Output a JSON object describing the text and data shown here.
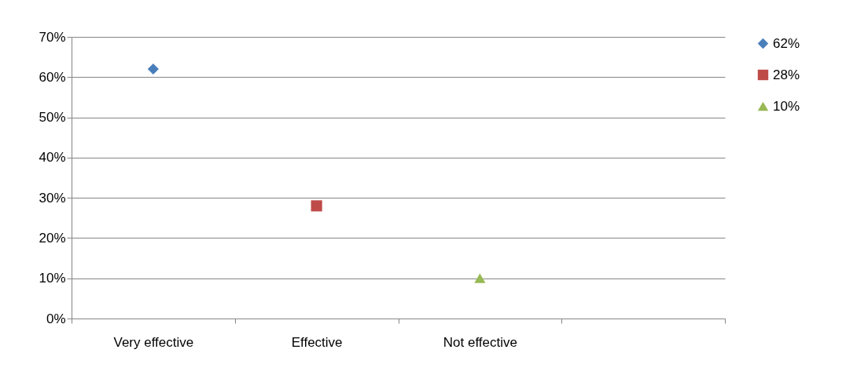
{
  "chart_data": {
    "type": "line",
    "categories": [
      "Very effective",
      "Effective",
      "Not effective",
      null
    ],
    "series": [
      {
        "name": "62%",
        "color": "#4a7ebb",
        "marker": "diamond",
        "values": [
          62,
          null,
          null,
          null
        ]
      },
      {
        "name": "28%",
        "color": "#be4b48",
        "marker": "square",
        "values": [
          null,
          28,
          null,
          null
        ]
      },
      {
        "name": "10%",
        "color": "#98b954",
        "marker": "triangle",
        "values": [
          null,
          null,
          10,
          null
        ]
      }
    ],
    "ylim": [
      0,
      70
    ],
    "yticks": [
      {
        "value": 0,
        "label": "0%"
      },
      {
        "value": 10,
        "label": "10%"
      },
      {
        "value": 20,
        "label": "20%"
      },
      {
        "value": 30,
        "label": "30%"
      },
      {
        "value": 40,
        "label": "40%"
      },
      {
        "value": 50,
        "label": "50%"
      },
      {
        "value": 60,
        "label": "60%"
      },
      {
        "value": 70,
        "label": "70%"
      }
    ],
    "grid": "y",
    "legend": "right"
  }
}
